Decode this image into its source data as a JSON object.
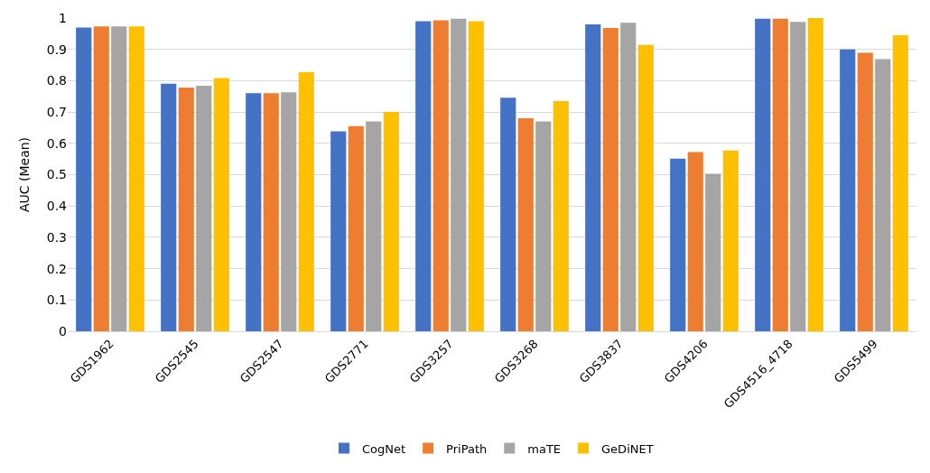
{
  "chart_data": {
    "type": "bar",
    "ylabel": "AUC (Mean)",
    "categories": [
      "GDS1962",
      "GDS2545",
      "GDS2547",
      "GDS2771",
      "GDS3257",
      "GDS3268",
      "GDS3837",
      "GDS4206",
      "GDS4516_4718",
      "GDS5499"
    ],
    "series": [
      {
        "name": "CogNet",
        "color": "#4472c4",
        "values": [
          0.97,
          0.79,
          0.76,
          0.638,
          0.99,
          0.746,
          0.98,
          0.551,
          0.998,
          0.9
        ]
      },
      {
        "name": "PriPath",
        "color": "#ed7d31",
        "values": [
          0.973,
          0.778,
          0.76,
          0.655,
          0.993,
          0.68,
          0.968,
          0.572,
          0.998,
          0.889
        ]
      },
      {
        "name": "maTE",
        "color": "#a5a5a5",
        "values": [
          0.973,
          0.784,
          0.763,
          0.67,
          0.998,
          0.67,
          0.985,
          0.503,
          0.988,
          0.869
        ]
      },
      {
        "name": "GeDiNET",
        "color": "#ffc000",
        "values": [
          0.973,
          0.808,
          0.827,
          0.7,
          0.99,
          0.735,
          0.914,
          0.577,
          1.0,
          0.945
        ]
      }
    ],
    "ylim": [
      0,
      1
    ],
    "yticks": [
      0,
      0.1,
      0.2,
      0.3,
      0.4,
      0.5,
      0.6,
      0.7,
      0.8,
      0.9,
      1
    ],
    "grid": "y",
    "legend": "bottom"
  }
}
